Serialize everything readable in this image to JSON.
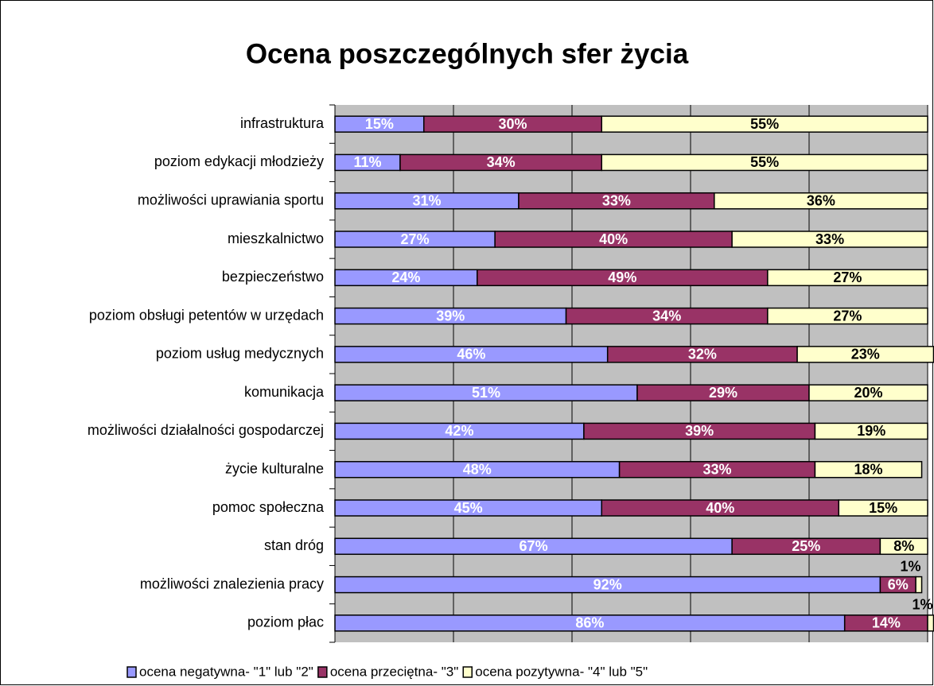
{
  "chart_data": {
    "type": "stacked_bar_horizontal",
    "title": "Ocena poszczególnych sfer życia",
    "categories": [
      "infrastruktura",
      "poziom edykacji młodzieży",
      "możliwości uprawiania sportu",
      "mieszkalnictwo",
      "bezpieczeństwo",
      "poziom obsługi petentów w urzędach",
      "poziom usług medycznych",
      "komunikacja",
      "możliwości działalności gospodarczej",
      "życie kulturalne",
      "pomoc społeczna",
      "stan dróg",
      "możliwości znalezienia pracy",
      "poziom płac"
    ],
    "series": [
      {
        "name": "ocena negatywna- \"1\" lub \"2\"",
        "color": "#9999ff",
        "label_color": "#ffffff",
        "values": [
          15,
          11,
          31,
          27,
          24,
          39,
          46,
          51,
          42,
          48,
          45,
          67,
          92,
          86
        ],
        "value_labels": [
          "15%",
          "11%",
          "31%",
          "27%",
          "24%",
          "39%",
          "46%",
          "51%",
          "42%",
          "48%",
          "45%",
          "67%",
          "92%",
          "86%"
        ]
      },
      {
        "name": "ocena przeciętna- \"3\"",
        "color": "#993366",
        "label_color": "#ffffff",
        "values": [
          30,
          34,
          33,
          40,
          49,
          34,
          32,
          29,
          39,
          33,
          40,
          25,
          6,
          14
        ],
        "value_labels": [
          "30%",
          "34%",
          "33%",
          "40%",
          "49%",
          "34%",
          "32%",
          "29%",
          "39%",
          "33%",
          "40%",
          "25%",
          "6%",
          "14%"
        ]
      },
      {
        "name": "ocena pozytywna- \"4\" lub \"5\"",
        "color": "#ffffcc",
        "label_color": "#000000",
        "values": [
          55,
          55,
          36,
          33,
          27,
          27,
          23,
          20,
          19,
          18,
          15,
          8,
          1,
          1
        ],
        "value_labels": [
          "55%",
          "55%",
          "36%",
          "33%",
          "27%",
          "27%",
          "23%",
          "20%",
          "19%",
          "18%",
          "15%",
          "8%",
          "1%",
          "1%"
        ]
      }
    ],
    "xlim": [
      0,
      100
    ],
    "xticks": [
      0,
      20,
      40,
      60,
      80,
      100
    ],
    "grid": true,
    "legend": "bottom"
  }
}
